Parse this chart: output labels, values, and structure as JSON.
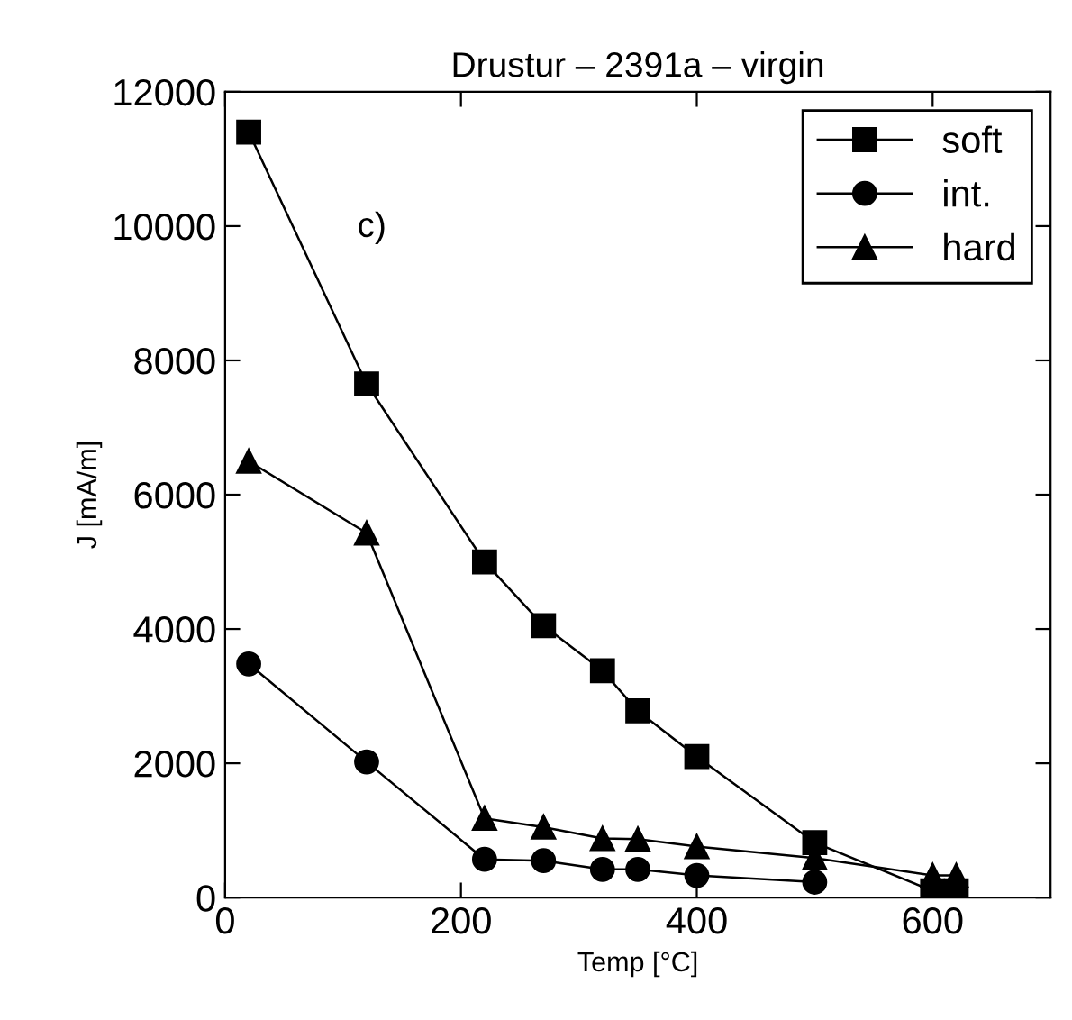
{
  "chart_data": {
    "type": "line",
    "title": "Drustur – 2391a – virgin",
    "xlabel": "Temp [°C]",
    "ylabel": "J [mA/m]",
    "annotations": [
      "c)"
    ],
    "x": [
      20,
      120,
      220,
      270,
      320,
      350,
      400,
      500,
      600,
      620
    ],
    "series": [
      {
        "name": "soft",
        "color": "#000000",
        "marker": "square",
        "values": [
          11400,
          7650,
          5000,
          4050,
          3380,
          2780,
          2100,
          820,
          100,
          100
        ]
      },
      {
        "name": "int.",
        "color": "#000000",
        "marker": "circle",
        "values": [
          3480,
          2020,
          570,
          550,
          420,
          420,
          330,
          230,
          null,
          null
        ]
      },
      {
        "name": "hard",
        "color": "#000000",
        "marker": "triangle",
        "values": [
          6500,
          5430,
          1180,
          1050,
          880,
          870,
          760,
          590,
          330,
          330
        ]
      }
    ],
    "xlim": [
      0,
      700
    ],
    "ylim": [
      0,
      12000
    ],
    "xticks": [
      0,
      200,
      400,
      600
    ],
    "yticks": [
      0,
      2000,
      4000,
      6000,
      8000,
      10000,
      12000
    ],
    "grid": false,
    "legend": "top right",
    "line_style": "solid"
  }
}
